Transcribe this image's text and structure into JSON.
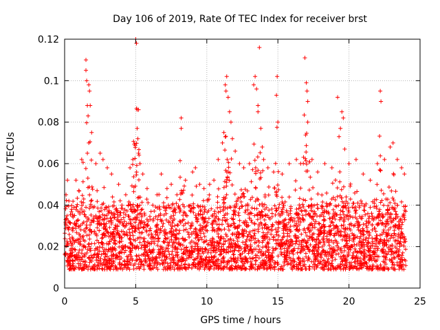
{
  "chart_data": {
    "type": "scatter",
    "title": "Day 106 of 2019, Rate Of TEC Index for receiver brst",
    "xlabel": "GPS time / hours",
    "ylabel": "ROTI / TECUs",
    "xlim": [
      0,
      25
    ],
    "ylim": [
      0,
      0.12
    ],
    "xticks": [
      0,
      5,
      10,
      15,
      20,
      25
    ],
    "xtick_labels": [
      "0",
      "5",
      "10",
      "15",
      "20",
      "25"
    ],
    "yticks": [
      0,
      0.02,
      0.04,
      0.06,
      0.08,
      0.1,
      0.12
    ],
    "ytick_labels": [
      "0",
      "0.02",
      "0.04",
      "0.06",
      "0.08",
      "0.1",
      "0.12"
    ],
    "grid": true,
    "marker": "plus",
    "color": "#ff0000",
    "series": [
      {
        "name": "ROTI",
        "points": [
          [
            0.1,
            0.045
          ],
          [
            0.2,
            0.052
          ],
          [
            0.3,
            0.042
          ],
          [
            0.5,
            0.038
          ],
          [
            0.8,
            0.052
          ],
          [
            1.0,
            0.047
          ],
          [
            1.2,
            0.062
          ],
          [
            1.5,
            0.11
          ],
          [
            1.5,
            0.105
          ],
          [
            1.55,
            0.1
          ],
          [
            1.6,
            0.088
          ],
          [
            1.65,
            0.083
          ],
          [
            1.7,
            0.098
          ],
          [
            1.75,
            0.095
          ],
          [
            1.8,
            0.088
          ],
          [
            1.7,
            0.07
          ],
          [
            1.6,
            0.065
          ],
          [
            1.9,
            0.075
          ],
          [
            2.2,
            0.06
          ],
          [
            2.5,
            0.065
          ],
          [
            2.7,
            0.062
          ],
          [
            3.0,
            0.058
          ],
          [
            3.3,
            0.055
          ],
          [
            3.8,
            0.05
          ],
          [
            4.3,
            0.045
          ],
          [
            4.6,
            0.058
          ],
          [
            4.8,
            0.062
          ],
          [
            5.0,
            0.12
          ],
          [
            5.05,
            0.118
          ],
          [
            5.1,
            0.086
          ],
          [
            5.2,
            0.086
          ],
          [
            5.1,
            0.077
          ],
          [
            5.15,
            0.072
          ],
          [
            5.2,
            0.065
          ],
          [
            5.3,
            0.06
          ],
          [
            5.5,
            0.055
          ],
          [
            5.8,
            0.048
          ],
          [
            6.2,
            0.04
          ],
          [
            6.5,
            0.045
          ],
          [
            6.8,
            0.055
          ],
          [
            7.2,
            0.048
          ],
          [
            7.5,
            0.05
          ],
          [
            7.9,
            0.045
          ],
          [
            8.2,
            0.082
          ],
          [
            8.2,
            0.077
          ],
          [
            8.5,
            0.052
          ],
          [
            9.0,
            0.056
          ],
          [
            9.2,
            0.058
          ],
          [
            9.5,
            0.05
          ],
          [
            9.8,
            0.048
          ],
          [
            10.2,
            0.05
          ],
          [
            10.5,
            0.052
          ],
          [
            10.8,
            0.062
          ],
          [
            11.1,
            0.07
          ],
          [
            11.2,
            0.075
          ],
          [
            11.3,
            0.098
          ],
          [
            11.35,
            0.095
          ],
          [
            11.4,
            0.102
          ],
          [
            11.5,
            0.092
          ],
          [
            11.6,
            0.085
          ],
          [
            11.7,
            0.08
          ],
          [
            11.8,
            0.072
          ],
          [
            12.0,
            0.066
          ],
          [
            12.3,
            0.06
          ],
          [
            12.6,
            0.058
          ],
          [
            13.0,
            0.06
          ],
          [
            13.3,
            0.098
          ],
          [
            13.4,
            0.102
          ],
          [
            13.5,
            0.096
          ],
          [
            13.6,
            0.088
          ],
          [
            13.6,
            0.085
          ],
          [
            13.7,
            0.116
          ],
          [
            13.8,
            0.077
          ],
          [
            13.9,
            0.068
          ],
          [
            14.0,
            0.062
          ],
          [
            14.3,
            0.058
          ],
          [
            14.7,
            0.056
          ],
          [
            14.9,
            0.093
          ],
          [
            14.95,
            0.102
          ],
          [
            15.0,
            0.08
          ],
          [
            15.3,
            0.055
          ],
          [
            15.8,
            0.06
          ],
          [
            16.3,
            0.062
          ],
          [
            16.6,
            0.06
          ],
          [
            16.9,
            0.111
          ],
          [
            17.0,
            0.099
          ],
          [
            17.05,
            0.095
          ],
          [
            17.1,
            0.09
          ],
          [
            17.1,
            0.08
          ],
          [
            17.4,
            0.062
          ],
          [
            17.8,
            0.056
          ],
          [
            18.3,
            0.06
          ],
          [
            18.8,
            0.058
          ],
          [
            19.2,
            0.092
          ],
          [
            19.5,
            0.085
          ],
          [
            19.6,
            0.082
          ],
          [
            19.4,
            0.077
          ],
          [
            19.3,
            0.073
          ],
          [
            19.7,
            0.067
          ],
          [
            20.0,
            0.06
          ],
          [
            20.5,
            0.062
          ],
          [
            21.0,
            0.055
          ],
          [
            21.5,
            0.052
          ],
          [
            22.0,
            0.06
          ],
          [
            22.2,
            0.095
          ],
          [
            22.25,
            0.09
          ],
          [
            22.5,
            0.062
          ],
          [
            22.9,
            0.068
          ],
          [
            23.1,
            0.07
          ],
          [
            23.4,
            0.062
          ],
          [
            23.7,
            0.058
          ],
          [
            23.9,
            0.055
          ]
        ],
        "band": {
          "description": "dense noise floor across the day",
          "x_range": [
            0,
            24
          ],
          "typical_min": 0.005,
          "typical_max": 0.04
        }
      }
    ]
  }
}
